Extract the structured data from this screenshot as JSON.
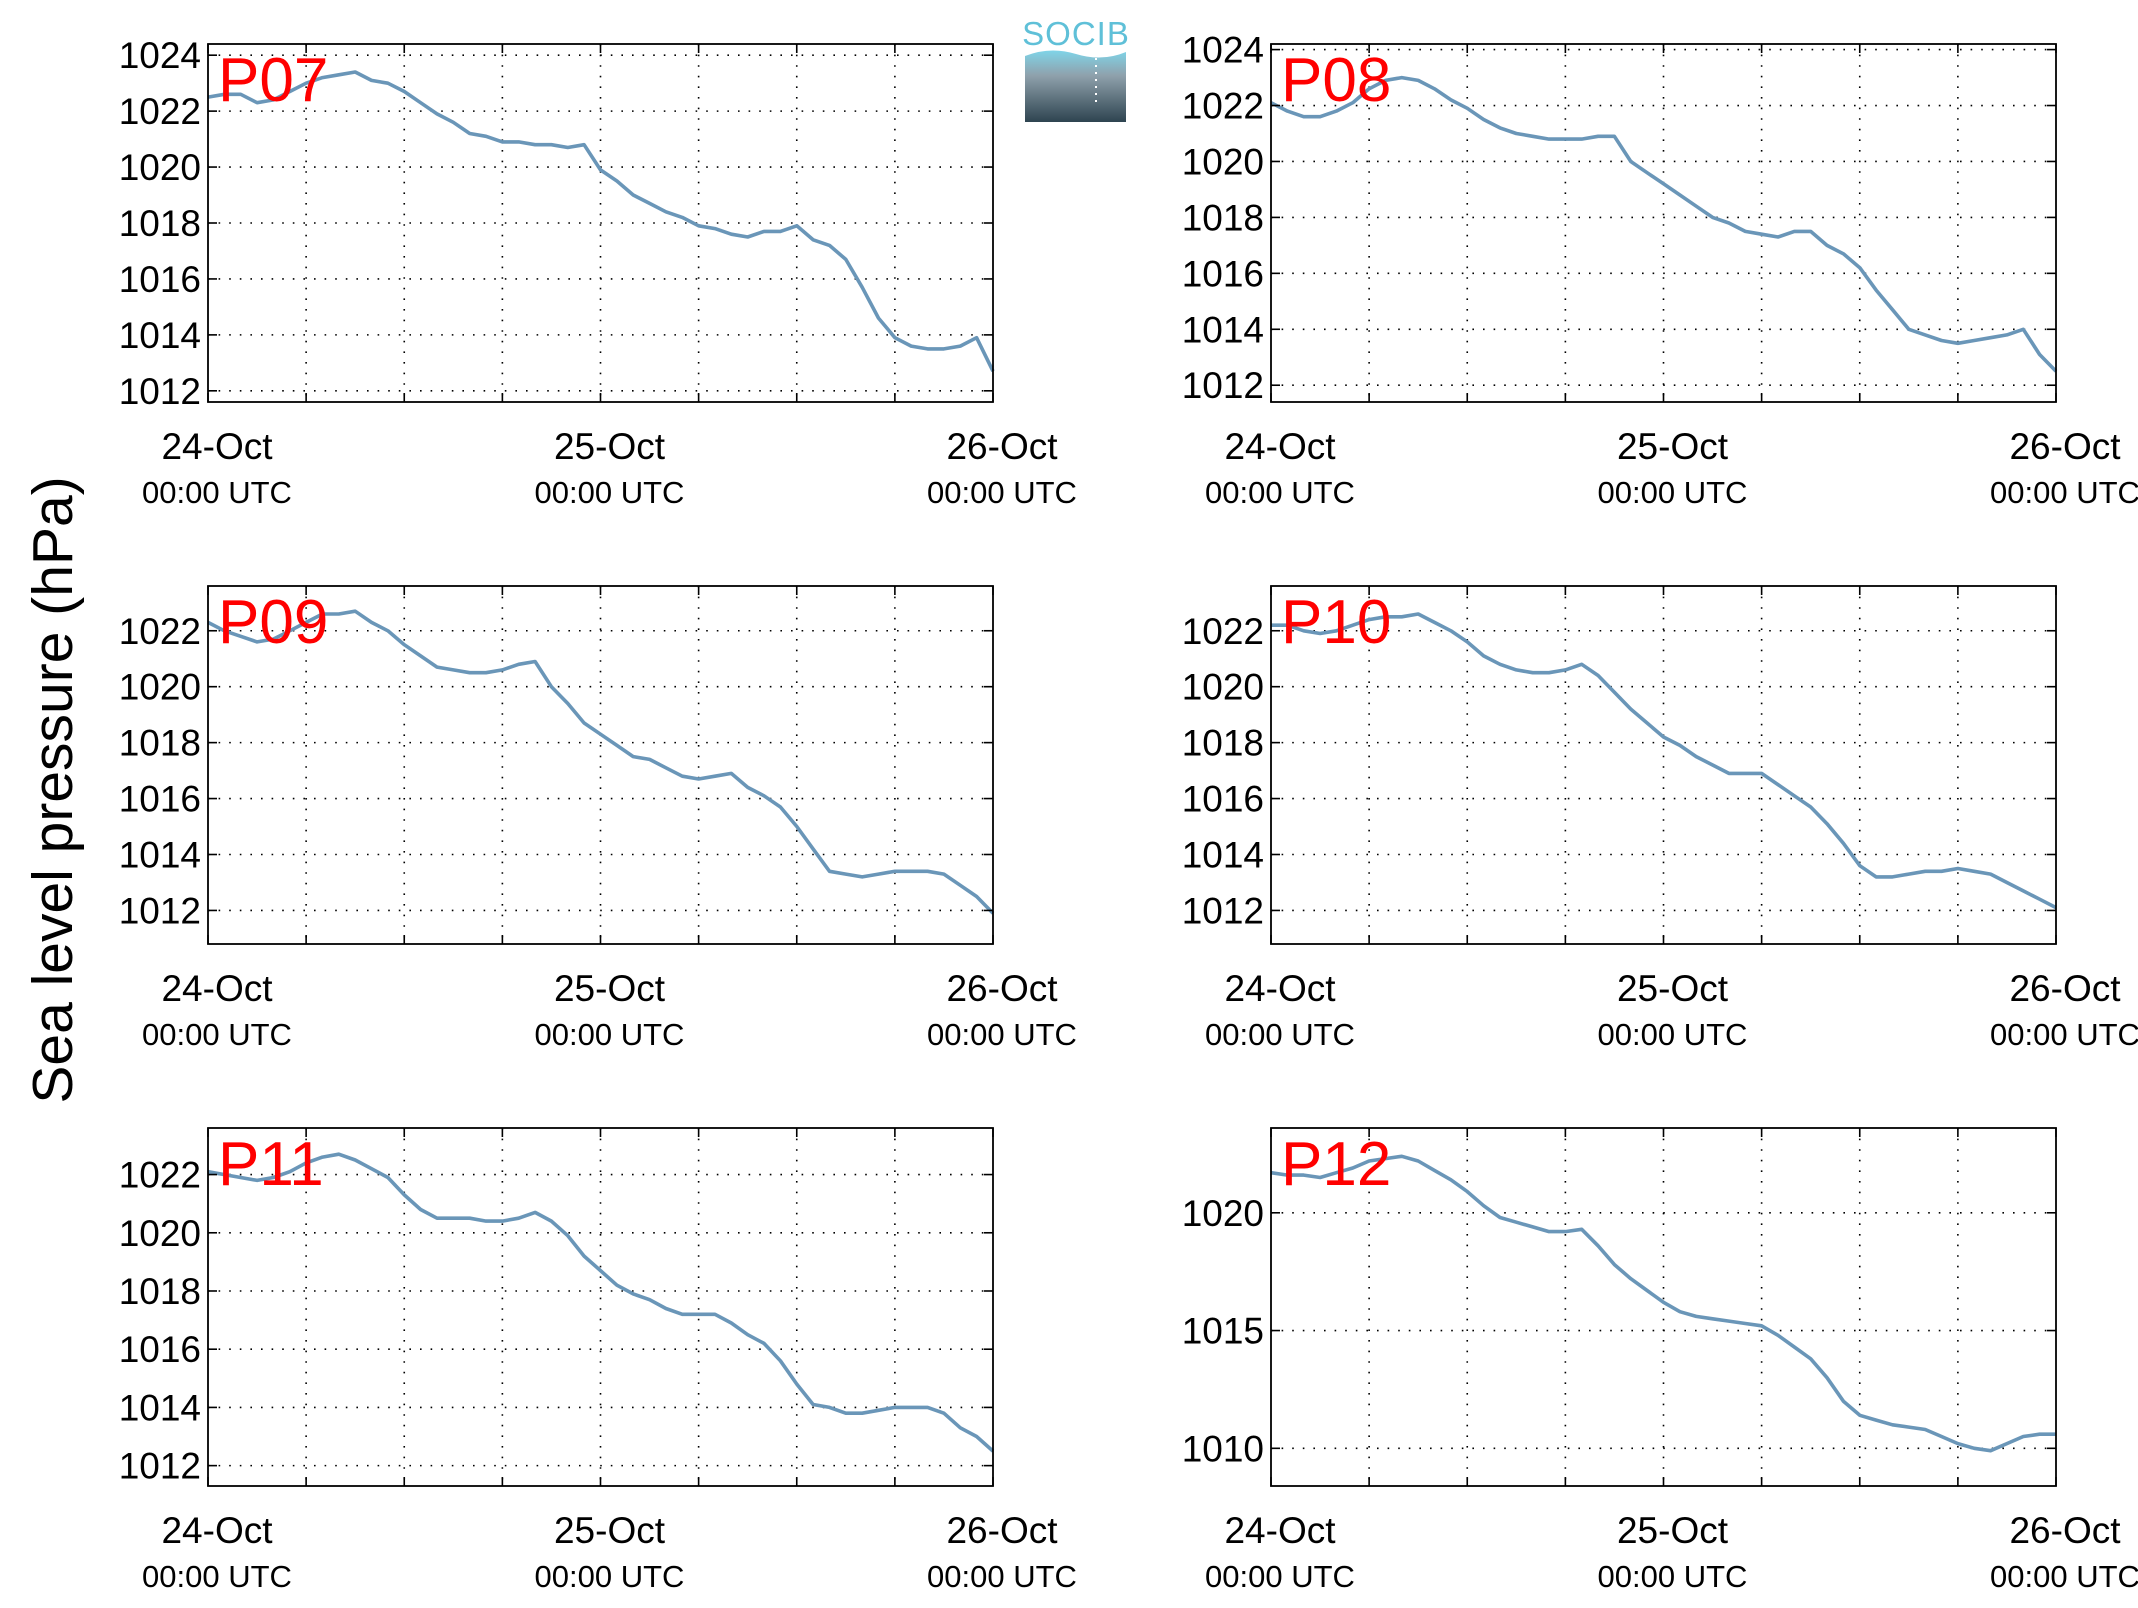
{
  "ylabel": "Sea level pressure (hPa)",
  "logo": {
    "text": "SOCIB",
    "accent": "#5fc0d8",
    "dark": "#2e4450"
  },
  "colors": {
    "line": "#6a96b8",
    "panel_label": "#ff0000",
    "axis": "#000000"
  },
  "chart_data": [
    {
      "type": "line",
      "panel_label": "P07",
      "x_ticks": [
        {
          "date": "24-Oct",
          "time": "00:00 UTC"
        },
        {
          "date": "25-Oct",
          "time": "00:00 UTC"
        },
        {
          "date": "26-Oct",
          "time": "00:00 UTC"
        }
      ],
      "xlim_hours": [
        0,
        48
      ],
      "ylim": [
        1011.6,
        1024.4
      ],
      "yticks": [
        1012,
        1014,
        1016,
        1018,
        1020,
        1022,
        1024
      ],
      "grid": true,
      "series": [
        {
          "x_hours": [
            0,
            1,
            2,
            3,
            4,
            5,
            6,
            7,
            8,
            9,
            10,
            11,
            12,
            13,
            14,
            15,
            16,
            17,
            18,
            19,
            20,
            21,
            22,
            23,
            24,
            25,
            26,
            27,
            28,
            29,
            30,
            31,
            32,
            33,
            34,
            35,
            36,
            37,
            38,
            39,
            40,
            41,
            42,
            43,
            44,
            45,
            46,
            47,
            48
          ],
          "values": [
            1022.5,
            1022.6,
            1022.6,
            1022.3,
            1022.4,
            1022.7,
            1023.0,
            1023.2,
            1023.3,
            1023.4,
            1023.1,
            1023.0,
            1022.7,
            1022.3,
            1021.9,
            1021.6,
            1021.2,
            1021.1,
            1020.9,
            1020.9,
            1020.8,
            1020.8,
            1020.7,
            1020.8,
            1019.9,
            1019.5,
            1019.0,
            1018.7,
            1018.4,
            1018.2,
            1017.9,
            1017.8,
            1017.6,
            1017.5,
            1017.7,
            1017.7,
            1017.9,
            1017.4,
            1017.2,
            1016.7,
            1015.7,
            1014.6,
            1013.9,
            1013.6,
            1013.5,
            1013.5,
            1013.6,
            1013.9,
            1012.7
          ]
        }
      ]
    },
    {
      "type": "line",
      "panel_label": "P08",
      "x_ticks": [
        {
          "date": "24-Oct",
          "time": "00:00 UTC"
        },
        {
          "date": "25-Oct",
          "time": "00:00 UTC"
        },
        {
          "date": "26-Oct",
          "time": "00:00 UTC"
        }
      ],
      "xlim_hours": [
        0,
        48
      ],
      "ylim": [
        1011.4,
        1024.2
      ],
      "yticks": [
        1012,
        1014,
        1016,
        1018,
        1020,
        1022,
        1024
      ],
      "grid": true,
      "series": [
        {
          "x_hours": [
            0,
            1,
            2,
            3,
            4,
            5,
            6,
            7,
            8,
            9,
            10,
            11,
            12,
            13,
            14,
            15,
            16,
            17,
            18,
            19,
            20,
            21,
            22,
            23,
            24,
            25,
            26,
            27,
            28,
            29,
            30,
            31,
            32,
            33,
            34,
            35,
            36,
            37,
            38,
            39,
            40,
            41,
            42,
            43,
            44,
            45,
            46,
            47,
            48
          ],
          "values": [
            1022.1,
            1021.8,
            1021.6,
            1021.6,
            1021.8,
            1022.1,
            1022.6,
            1022.9,
            1023.0,
            1022.9,
            1022.6,
            1022.2,
            1021.9,
            1021.5,
            1021.2,
            1021.0,
            1020.9,
            1020.8,
            1020.8,
            1020.8,
            1020.9,
            1020.9,
            1020.0,
            1019.6,
            1019.2,
            1018.8,
            1018.4,
            1018.0,
            1017.8,
            1017.5,
            1017.4,
            1017.3,
            1017.5,
            1017.5,
            1017.0,
            1016.7,
            1016.2,
            1015.4,
            1014.7,
            1014.0,
            1013.8,
            1013.6,
            1013.5,
            1013.6,
            1013.7,
            1013.8,
            1014.0,
            1013.1,
            1012.5
          ]
        }
      ]
    },
    {
      "type": "line",
      "panel_label": "P09",
      "x_ticks": [
        {
          "date": "24-Oct",
          "time": "00:00 UTC"
        },
        {
          "date": "25-Oct",
          "time": "00:00 UTC"
        },
        {
          "date": "26-Oct",
          "time": "00:00 UTC"
        }
      ],
      "xlim_hours": [
        0,
        48
      ],
      "ylim": [
        1010.8,
        1023.6
      ],
      "yticks": [
        1012,
        1014,
        1016,
        1018,
        1020,
        1022
      ],
      "grid": true,
      "series": [
        {
          "x_hours": [
            0,
            1,
            2,
            3,
            4,
            5,
            6,
            7,
            8,
            9,
            10,
            11,
            12,
            13,
            14,
            15,
            16,
            17,
            18,
            19,
            20,
            21,
            22,
            23,
            24,
            25,
            26,
            27,
            28,
            29,
            30,
            31,
            32,
            33,
            34,
            35,
            36,
            37,
            38,
            39,
            40,
            41,
            42,
            43,
            44,
            45,
            46,
            47,
            48
          ],
          "values": [
            1022.3,
            1022.0,
            1021.8,
            1021.6,
            1021.7,
            1022.0,
            1022.3,
            1022.6,
            1022.6,
            1022.7,
            1022.3,
            1022.0,
            1021.5,
            1021.1,
            1020.7,
            1020.6,
            1020.5,
            1020.5,
            1020.6,
            1020.8,
            1020.9,
            1020.0,
            1019.4,
            1018.7,
            1018.3,
            1017.9,
            1017.5,
            1017.4,
            1017.1,
            1016.8,
            1016.7,
            1016.8,
            1016.9,
            1016.4,
            1016.1,
            1015.7,
            1015.0,
            1014.2,
            1013.4,
            1013.3,
            1013.2,
            1013.3,
            1013.4,
            1013.4,
            1013.4,
            1013.3,
            1012.9,
            1012.5,
            1011.9
          ]
        }
      ]
    },
    {
      "type": "line",
      "panel_label": "P10",
      "x_ticks": [
        {
          "date": "24-Oct",
          "time": "00:00 UTC"
        },
        {
          "date": "25-Oct",
          "time": "00:00 UTC"
        },
        {
          "date": "26-Oct",
          "time": "00:00 UTC"
        }
      ],
      "xlim_hours": [
        0,
        48
      ],
      "ylim": [
        1010.8,
        1023.6
      ],
      "yticks": [
        1012,
        1014,
        1016,
        1018,
        1020,
        1022
      ],
      "grid": true,
      "series": [
        {
          "x_hours": [
            0,
            1,
            2,
            3,
            4,
            5,
            6,
            7,
            8,
            9,
            10,
            11,
            12,
            13,
            14,
            15,
            16,
            17,
            18,
            19,
            20,
            21,
            22,
            23,
            24,
            25,
            26,
            27,
            28,
            29,
            30,
            31,
            32,
            33,
            34,
            35,
            36,
            37,
            38,
            39,
            40,
            41,
            42,
            43,
            44,
            45,
            46,
            47,
            48
          ],
          "values": [
            1022.2,
            1022.2,
            1022.0,
            1021.9,
            1022.0,
            1022.2,
            1022.4,
            1022.5,
            1022.5,
            1022.6,
            1022.3,
            1022.0,
            1021.6,
            1021.1,
            1020.8,
            1020.6,
            1020.5,
            1020.5,
            1020.6,
            1020.8,
            1020.4,
            1019.8,
            1019.2,
            1018.7,
            1018.2,
            1017.9,
            1017.5,
            1017.2,
            1016.9,
            1016.9,
            1016.9,
            1016.5,
            1016.1,
            1015.7,
            1015.1,
            1014.4,
            1013.6,
            1013.2,
            1013.2,
            1013.3,
            1013.4,
            1013.4,
            1013.5,
            1013.4,
            1013.3,
            1013.0,
            1012.7,
            1012.4,
            1012.1
          ]
        }
      ]
    },
    {
      "type": "line",
      "panel_label": "P11",
      "x_ticks": [
        {
          "date": "24-Oct",
          "time": "00:00 UTC"
        },
        {
          "date": "25-Oct",
          "time": "00:00 UTC"
        },
        {
          "date": "26-Oct",
          "time": "00:00 UTC"
        }
      ],
      "xlim_hours": [
        0,
        48
      ],
      "ylim": [
        1011.3,
        1023.6
      ],
      "yticks": [
        1012,
        1014,
        1016,
        1018,
        1020,
        1022
      ],
      "grid": true,
      "series": [
        {
          "x_hours": [
            0,
            1,
            2,
            3,
            4,
            5,
            6,
            7,
            8,
            9,
            10,
            11,
            12,
            13,
            14,
            15,
            16,
            17,
            18,
            19,
            20,
            21,
            22,
            23,
            24,
            25,
            26,
            27,
            28,
            29,
            30,
            31,
            32,
            33,
            34,
            35,
            36,
            37,
            38,
            39,
            40,
            41,
            42,
            43,
            44,
            45,
            46,
            47,
            48
          ],
          "values": [
            1022.1,
            1022.0,
            1021.9,
            1021.8,
            1021.9,
            1022.1,
            1022.4,
            1022.6,
            1022.7,
            1022.5,
            1022.2,
            1021.9,
            1021.3,
            1020.8,
            1020.5,
            1020.5,
            1020.5,
            1020.4,
            1020.4,
            1020.5,
            1020.7,
            1020.4,
            1019.9,
            1019.2,
            1018.7,
            1018.2,
            1017.9,
            1017.7,
            1017.4,
            1017.2,
            1017.2,
            1017.2,
            1016.9,
            1016.5,
            1016.2,
            1015.6,
            1014.8,
            1014.1,
            1014.0,
            1013.8,
            1013.8,
            1013.9,
            1014.0,
            1014.0,
            1014.0,
            1013.8,
            1013.3,
            1013.0,
            1012.5
          ]
        }
      ]
    },
    {
      "type": "line",
      "panel_label": "P12",
      "x_ticks": [
        {
          "date": "24-Oct",
          "time": "00:00 UTC"
        },
        {
          "date": "25-Oct",
          "time": "00:00 UTC"
        },
        {
          "date": "26-Oct",
          "time": "00:00 UTC"
        }
      ],
      "xlim_hours": [
        0,
        48
      ],
      "ylim": [
        1008.4,
        1023.6
      ],
      "yticks": [
        1010,
        1015,
        1020
      ],
      "grid": true,
      "series": [
        {
          "x_hours": [
            0,
            1,
            2,
            3,
            4,
            5,
            6,
            7,
            8,
            9,
            10,
            11,
            12,
            13,
            14,
            15,
            16,
            17,
            18,
            19,
            20,
            21,
            22,
            23,
            24,
            25,
            26,
            27,
            28,
            29,
            30,
            31,
            32,
            33,
            34,
            35,
            36,
            37,
            38,
            39,
            40,
            41,
            42,
            43,
            44,
            45,
            46,
            47,
            48
          ],
          "values": [
            1021.7,
            1021.6,
            1021.6,
            1021.5,
            1021.7,
            1021.9,
            1022.2,
            1022.3,
            1022.4,
            1022.2,
            1021.8,
            1021.4,
            1020.9,
            1020.3,
            1019.8,
            1019.6,
            1019.4,
            1019.2,
            1019.2,
            1019.3,
            1018.6,
            1017.8,
            1017.2,
            1016.7,
            1016.2,
            1015.8,
            1015.6,
            1015.5,
            1015.4,
            1015.3,
            1015.2,
            1014.8,
            1014.3,
            1013.8,
            1013.0,
            1012.0,
            1011.4,
            1011.2,
            1011.0,
            1010.9,
            1010.8,
            1010.5,
            1010.2,
            1010.0,
            1009.9,
            1010.2,
            1010.5,
            1010.6,
            1010.6
          ]
        }
      ]
    }
  ]
}
